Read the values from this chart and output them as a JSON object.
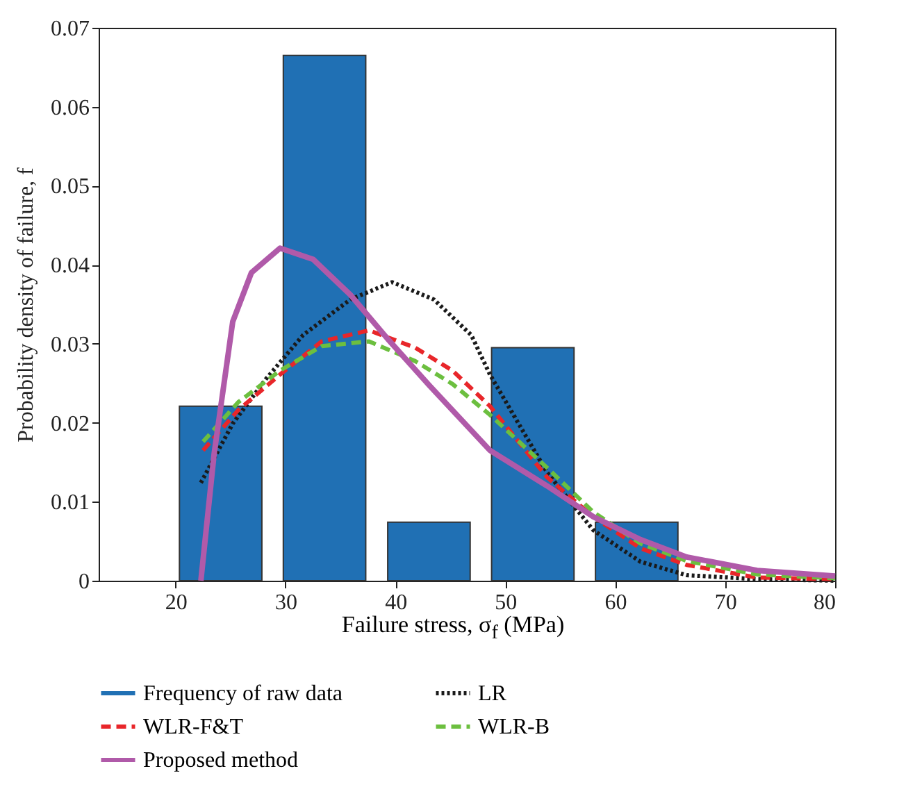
{
  "chart_data": {
    "type": "bar",
    "xlabel": "Failure stress, σ$_{f}$ (MPa)",
    "ylabel": "Probability density of failure, f",
    "xlim": [
      13,
      80
    ],
    "xticks": [
      20,
      30,
      40,
      50,
      60,
      70,
      80
    ],
    "ylim": [
      0,
      0.07
    ],
    "yticks": [
      0,
      0.01,
      0.02,
      0.03,
      0.04,
      0.05,
      0.06,
      0.07
    ],
    "grid": false,
    "legend": "bottom",
    "marker": "none",
    "series": [
      {
        "name": "Frequency of raw data",
        "color": "#2070b4",
        "x": [
          24.1,
          33.55,
          43.05,
          52.5,
          61.95
        ],
        "values": [
          0.0221,
          0.0665,
          0.0074,
          0.0295,
          0.0074
        ]
      },
      {
        "name": "LR",
        "type": "line",
        "line_style": "dotted",
        "color": "#1a1a1a",
        "x": [
          22.3,
          25.2,
          28.2,
          31.6,
          35.9,
          39.7,
          43.5,
          46.9,
          48.6,
          53.8,
          58.0,
          62.3,
          66.5,
          72.9,
          80
        ],
        "values": [
          0.0124,
          0.0199,
          0.0255,
          0.0311,
          0.0356,
          0.0378,
          0.0356,
          0.0311,
          0.0261,
          0.0137,
          0.0064,
          0.0024,
          0.0007,
          0.0002,
          0
        ]
      },
      {
        "name": "WLR-F&T",
        "type": "line",
        "line_style": "dashed",
        "color": "#e8262a",
        "x": [
          22.5,
          25.7,
          29.5,
          33.3,
          37.6,
          41.8,
          45.2,
          48.6,
          53.8,
          58.0,
          62.3,
          66.5,
          72.9,
          80
        ],
        "values": [
          0.0165,
          0.0216,
          0.0261,
          0.0303,
          0.0317,
          0.0295,
          0.0266,
          0.0221,
          0.0131,
          0.0081,
          0.0041,
          0.002,
          0.0004,
          0.0002
        ]
      },
      {
        "name": "WLR-B",
        "type": "line",
        "line_style": "dashed",
        "color": "#6cbf3f",
        "x": [
          22.5,
          25.7,
          29.5,
          33.3,
          37.6,
          41.8,
          45.2,
          48.6,
          53.8,
          58.0,
          62.3,
          66.5,
          72.9,
          80
        ],
        "values": [
          0.0176,
          0.0226,
          0.0266,
          0.0297,
          0.0303,
          0.0278,
          0.0249,
          0.021,
          0.0143,
          0.0087,
          0.0047,
          0.0025,
          0.0008,
          0.0003
        ]
      },
      {
        "name": "Proposed method",
        "type": "line",
        "line_style": "solid",
        "color": "#b05aa9",
        "x": [
          22.3,
          23.5,
          25.2,
          26.9,
          29.5,
          32.5,
          35.9,
          39.3,
          43.1,
          48.6,
          53.8,
          58.0,
          62.3,
          66.5,
          72.9,
          80
        ],
        "values": [
          0,
          0.016,
          0.0328,
          0.039,
          0.0421,
          0.0407,
          0.0362,
          0.0306,
          0.0247,
          0.0165,
          0.012,
          0.0081,
          0.0052,
          0.003,
          0.0013,
          0.0006
        ]
      }
    ]
  }
}
